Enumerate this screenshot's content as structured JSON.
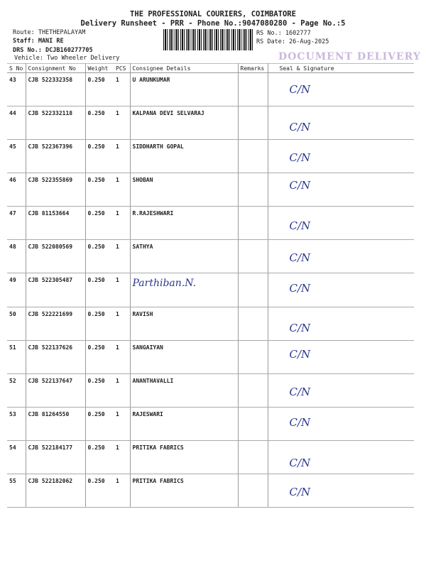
{
  "header": {
    "title": "THE PROFESSIONAL COURIERS, COIMBATORE",
    "subtitle": "Delivery Runsheet - PRR - Phone No.:9047080280 - Page No.:5",
    "route": "Route: THETHEPALAYAM",
    "staff": "Staff: MANI RE",
    "drs_no": "DRS No.: DCJB160277705",
    "vehicle": "Vehicle: Two Wheeler Delivery",
    "rs_no": "RS No.: 1602777",
    "rs_date": "RS Date: 26-Aug-2025",
    "stamp": "DOCUMENT DELIVERY"
  },
  "table": {
    "columns": [
      "S No",
      "Consignment No",
      "Weight",
      "PCS",
      "Consignee Details",
      "Remarks",
      "Seal & Signature"
    ],
    "rows": [
      {
        "sno": "43",
        "cn": "CJB 522332358",
        "weight": "0.250",
        "pcs": "1",
        "consignee": "U ARUNKUMAR",
        "remarks": "",
        "signature": "C/N"
      },
      {
        "sno": "44",
        "cn": "CJB 522332118",
        "weight": "0.250",
        "pcs": "1",
        "consignee": "KALPANA DEVI SELVARAJ",
        "remarks": "",
        "signature": "C/N"
      },
      {
        "sno": "45",
        "cn": "CJB 522367396",
        "weight": "0.250",
        "pcs": "1",
        "consignee": "SIDDHARTH GOPAL",
        "remarks": "",
        "signature": "C/N"
      },
      {
        "sno": "46",
        "cn": "CJB 522355869",
        "weight": "0.250",
        "pcs": "1",
        "consignee": "SHOBAN",
        "remarks": "",
        "signature": "C/N"
      },
      {
        "sno": "47",
        "cn": "CJB 81153664",
        "weight": "0.250",
        "pcs": "1",
        "consignee": "R.RAJESHWARI",
        "remarks": "",
        "signature": "C/N"
      },
      {
        "sno": "48",
        "cn": "CJB 522080569",
        "weight": "0.250",
        "pcs": "1",
        "consignee": "SATHYA",
        "remarks": "",
        "signature": "C/N"
      },
      {
        "sno": "49",
        "cn": "CJB 522305487",
        "weight": "0.250",
        "pcs": "1",
        "consignee": "Parthiban.N.",
        "handwritten": true,
        "remarks": "",
        "signature": "C/N"
      },
      {
        "sno": "50",
        "cn": "CJB 522221699",
        "weight": "0.250",
        "pcs": "1",
        "consignee": "RAVISH",
        "remarks": "",
        "signature": "C/N"
      },
      {
        "sno": "51",
        "cn": "CJB 522137626",
        "weight": "0.250",
        "pcs": "1",
        "consignee": "SANGAIYAN",
        "remarks": "",
        "signature": "C/N"
      },
      {
        "sno": "52",
        "cn": "CJB 522137647",
        "weight": "0.250",
        "pcs": "1",
        "consignee": "ANANTHAVALLI",
        "remarks": "",
        "signature": "C/N"
      },
      {
        "sno": "53",
        "cn": "CJB 81264550",
        "weight": "0.250",
        "pcs": "1",
        "consignee": "RAJESWARI",
        "remarks": "",
        "signature": "C/N"
      },
      {
        "sno": "54",
        "cn": "CJB 522184177",
        "weight": "0.250",
        "pcs": "1",
        "consignee": "PRITIKA FABRICS",
        "remarks": "",
        "signature": "C/N"
      },
      {
        "sno": "55",
        "cn": "CJB 522182062",
        "weight": "0.250",
        "pcs": "1",
        "consignee": "PRITIKA FABRICS",
        "remarks": "",
        "signature": "C/N"
      }
    ]
  },
  "colors": {
    "ink": "#2b3590",
    "stamp": "#b7a2d4"
  }
}
